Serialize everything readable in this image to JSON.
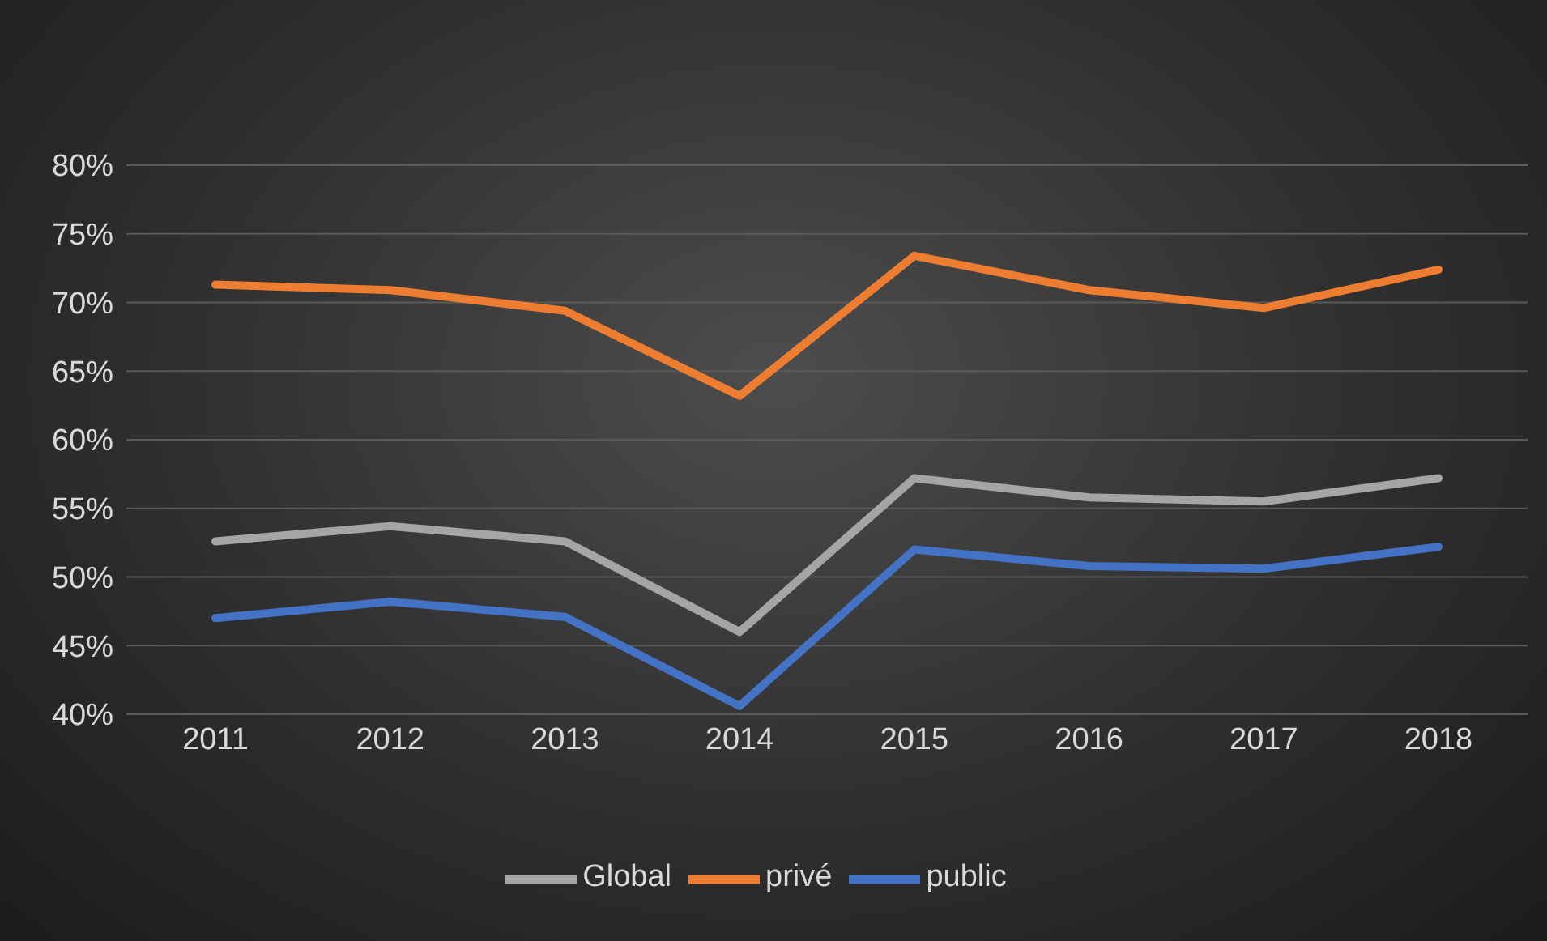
{
  "chart_data": {
    "type": "line",
    "categories": [
      "2011",
      "2012",
      "2013",
      "2014",
      "2015",
      "2016",
      "2017",
      "2018"
    ],
    "series": [
      {
        "name": "public",
        "color": "#4472c4",
        "values": [
          47.0,
          48.2,
          47.1,
          40.6,
          52.0,
          50.8,
          50.6,
          52.2
        ]
      },
      {
        "name": "privé",
        "color": "#ed7d31",
        "values": [
          71.3,
          70.9,
          69.4,
          63.2,
          73.4,
          70.9,
          69.6,
          72.4
        ]
      },
      {
        "name": "Global",
        "color": "#a5a5a5",
        "values": [
          52.6,
          53.7,
          52.6,
          46.0,
          57.2,
          55.8,
          55.5,
          57.2
        ]
      }
    ],
    "ylim": [
      40,
      80
    ],
    "yticks": [
      {
        "value": 40,
        "label": "40%"
      },
      {
        "value": 45,
        "label": "45%"
      },
      {
        "value": 50,
        "label": "50%"
      },
      {
        "value": 55,
        "label": "55%"
      },
      {
        "value": 60,
        "label": "60%"
      },
      {
        "value": 65,
        "label": "65%"
      },
      {
        "value": 70,
        "label": "70%"
      },
      {
        "value": 75,
        "label": "75%"
      },
      {
        "value": 80,
        "label": "80%"
      }
    ],
    "grid": "y",
    "legend": "bottom",
    "marker": "none",
    "line_style": "solid"
  }
}
